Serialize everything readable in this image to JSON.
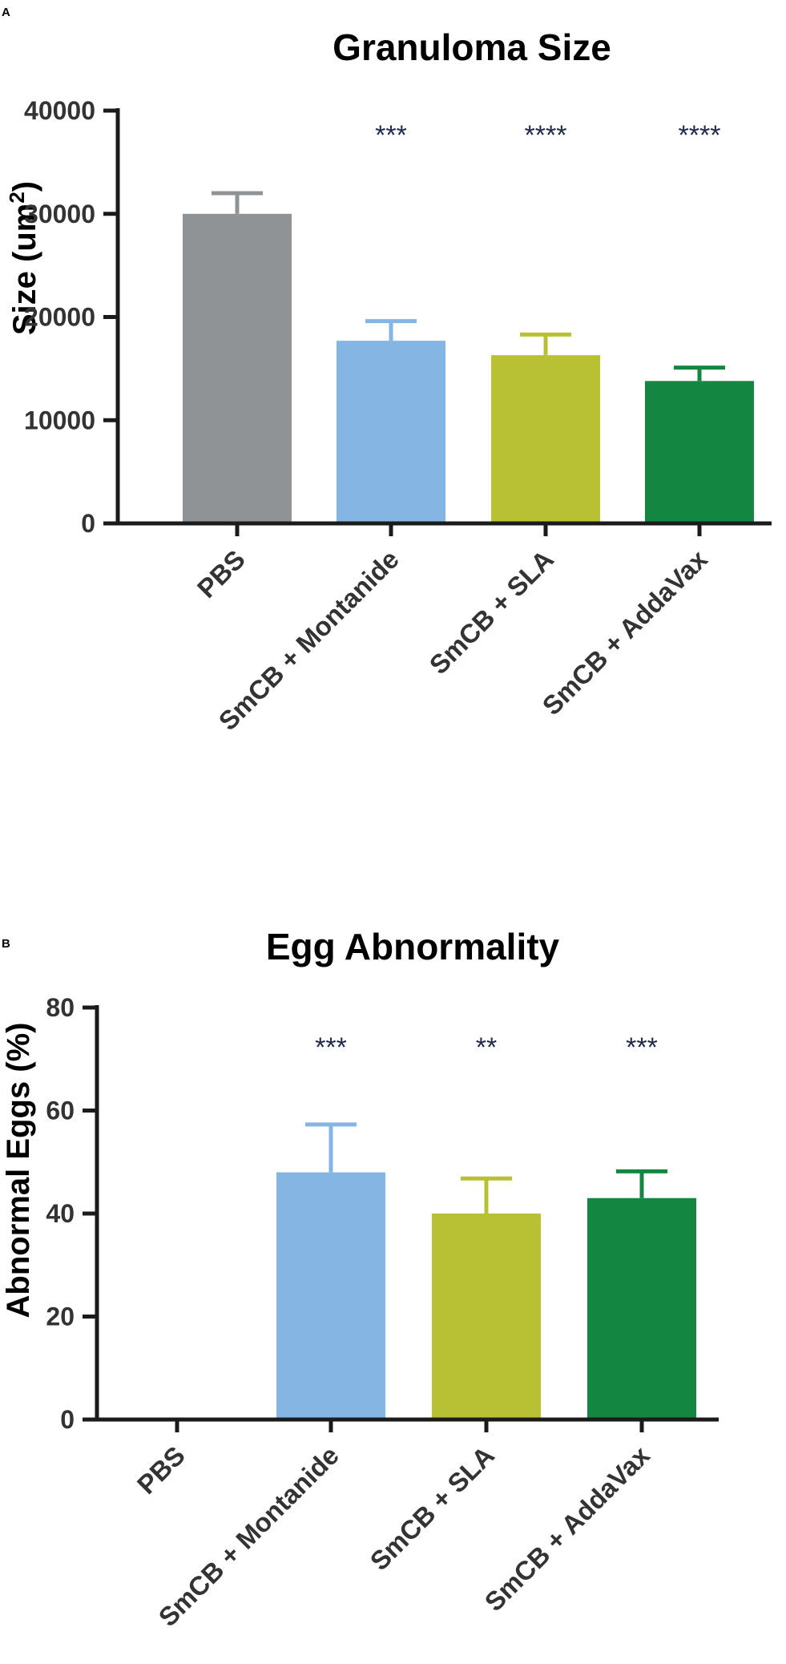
{
  "chart_data": [
    {
      "panel": "A",
      "type": "bar",
      "title": "Granuloma Size",
      "xlabel": "",
      "ylabel": "Size (um",
      "ylabel_superscript": "2",
      "ylabel_suffix": ")",
      "ylim": [
        0,
        40000
      ],
      "yticks": [
        "0",
        "10000",
        "20000",
        "30000",
        "40000"
      ],
      "categories": [
        "PBS",
        "SmCB + Montanide",
        "SmCB + SLA",
        "SmCB + AddaVax"
      ],
      "values": [
        30000,
        17700,
        16300,
        13800
      ],
      "errors": [
        2000,
        1900,
        2000,
        1300
      ],
      "significance": [
        "",
        "***",
        "****",
        "****"
      ],
      "colors": [
        "#8f9396",
        "#85b6e3",
        "#b8c034",
        "#138641"
      ]
    },
    {
      "panel": "B",
      "type": "bar",
      "title": "Egg Abnormality",
      "xlabel": "",
      "ylabel": "Abnormal Eggs (%)",
      "ylim": [
        0,
        80
      ],
      "yticks": [
        "0",
        "20",
        "40",
        "60",
        "80"
      ],
      "categories": [
        "PBS",
        "SmCB + Montanide",
        "SmCB + SLA",
        "SmCB + AddaVax"
      ],
      "values": [
        0,
        48,
        40,
        43
      ],
      "errors": [
        0,
        9.3,
        6.8,
        5.2
      ],
      "significance": [
        "",
        "***",
        "**",
        "***"
      ],
      "colors": [
        "#8f9396",
        "#85b6e3",
        "#b8c034",
        "#138641"
      ]
    }
  ]
}
